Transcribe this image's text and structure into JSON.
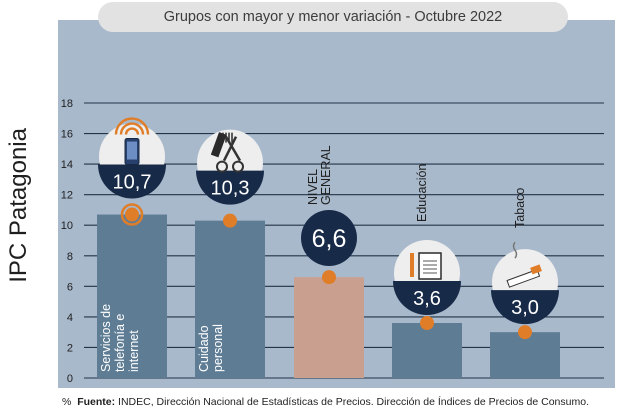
{
  "title": "Grupos con mayor y menor variación - Octubre 2022",
  "side_label": "IPC Patagonia",
  "source": {
    "symbol": "%",
    "label": "Fuente:",
    "text": "INDEC, Dirección Nacional de Estadísticas de Precios. Dirección de Índices de Precios de Consumo."
  },
  "colors": {
    "plot_bg": "#a9b9cc",
    "bar": "#5e7d95",
    "bar_highlight": "#c9a08f",
    "marker": "#e07d28",
    "badge": "#172a48",
    "gridline": "#243447"
  },
  "chart_data": {
    "type": "bar",
    "title": "Grupos con mayor y menor variación - Octubre 2022",
    "xlabel": "",
    "ylabel": "IPC Patagonia",
    "ylim": [
      0,
      18
    ],
    "yticks": [
      0,
      2,
      4,
      6,
      8,
      10,
      12,
      14,
      16,
      18
    ],
    "grid": true,
    "categories": [
      "Servicios de telefonía e internet",
      "Cuidado personal",
      "NIVEL GENERAL",
      "Educación",
      "Tabaco"
    ],
    "values": [
      10.7,
      10.3,
      6.6,
      3.6,
      3.0
    ],
    "value_labels": [
      "10,7",
      "10,3",
      "6,6",
      "3,6",
      "3,0"
    ],
    "category_labels": [
      [
        "Servicios de",
        "telefonía e",
        "internet"
      ],
      [
        "Cuidado",
        "personal"
      ],
      [
        "NIVEL",
        "GENERAL"
      ],
      [
        "Educación"
      ],
      [
        "Tabaco"
      ]
    ],
    "icons": [
      "smartphone-wifi-icon",
      "comb-scissors-icon",
      "",
      "notebook-pencil-icon",
      "cigarette-icon"
    ]
  }
}
